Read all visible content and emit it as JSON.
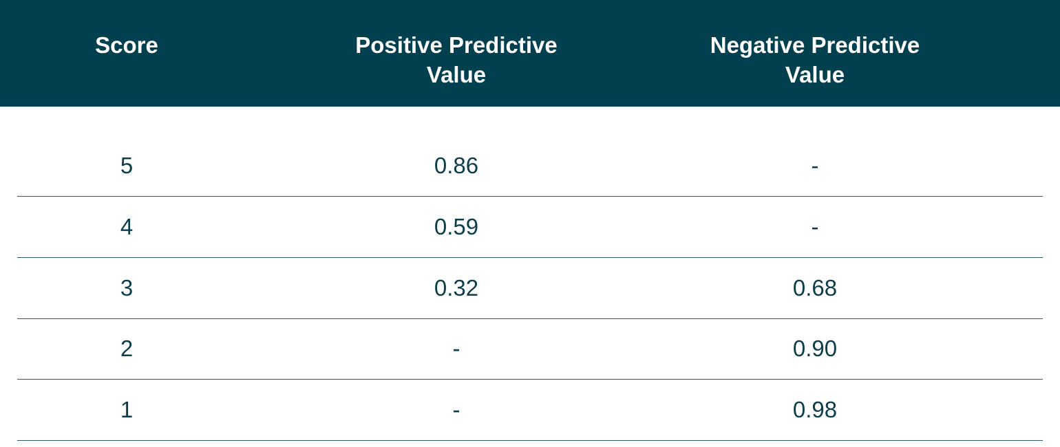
{
  "table": {
    "headers": [
      "Score",
      "Positive Predictive Value",
      "Negative Predictive Value"
    ],
    "rows": [
      [
        "5",
        "0.86",
        "-"
      ],
      [
        "4",
        "0.59",
        "-"
      ],
      [
        "3",
        "0.32",
        "0.68"
      ],
      [
        "2",
        "-",
        "0.90"
      ],
      [
        "1",
        "-",
        "0.98"
      ]
    ]
  }
}
